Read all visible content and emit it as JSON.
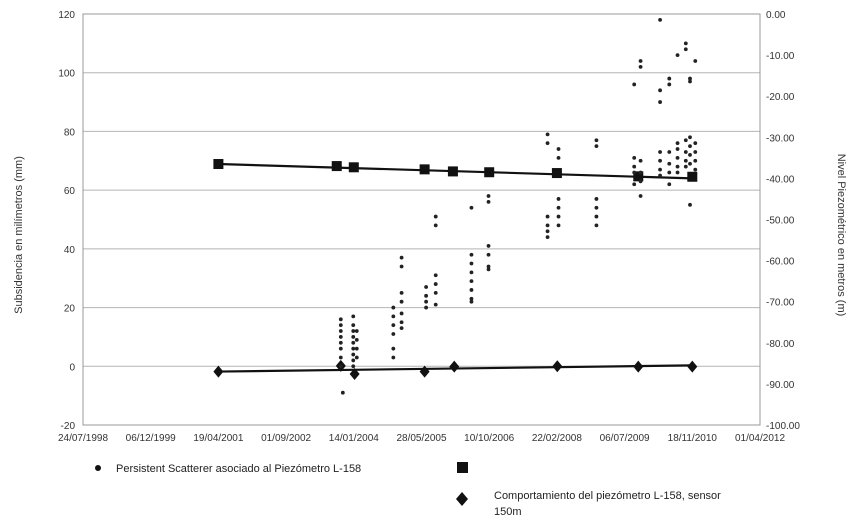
{
  "chart_data": {
    "type": "scatter",
    "x_axis": {
      "type": "date",
      "range": [
        "1998-07-24",
        "2012-04-01"
      ],
      "tick_labels": [
        "24/07/1998",
        "06/12/1999",
        "19/04/2001",
        "01/09/2002",
        "14/01/2004",
        "28/05/2005",
        "10/10/2006",
        "22/02/2008",
        "06/07/2009",
        "18/11/2010",
        "01/04/2012"
      ]
    },
    "y_left": {
      "label": "Subsidencia en milímetros   (mm)",
      "range": [
        -20,
        120
      ],
      "tick_labels": [
        "-20",
        "0",
        "20",
        "40",
        "60",
        "80",
        "100",
        "120"
      ]
    },
    "y_right": {
      "label": "Nivel Piezométrico en metros   (m)",
      "range": [
        -100,
        0
      ],
      "tick_labels": [
        "-100.00",
        "-90.00",
        "-80.00",
        "-70.00",
        "-60.00",
        "-50.00",
        "-40.00",
        "-30.00",
        "-20.00",
        "-10.00",
        "0.00"
      ]
    },
    "grid": "horizontal",
    "legend": {
      "position": "bottom",
      "items": [
        {
          "label": "Persistent Scatterer asociado al Piezómetro L-158",
          "marker": "circle"
        },
        {
          "label": "",
          "marker": "square"
        },
        {
          "label": "Comportamiento del  piezómetro L-158, sensor 150m",
          "marker": "diamond"
        }
      ]
    },
    "series": [
      {
        "marker": "square",
        "axis": "right",
        "trendline": {
          "from": [
            "2001-04-19",
            -36.5
          ],
          "to": [
            "2010-11-18",
            -40.0
          ]
        },
        "points": [
          [
            "2001-04-19",
            -36.5
          ],
          [
            "2003-09-10",
            -37.0
          ],
          [
            "2004-01-14",
            -37.3
          ],
          [
            "2005-06-20",
            -37.8
          ],
          [
            "2006-01-15",
            -38.3
          ],
          [
            "2006-10-10",
            -38.5
          ],
          [
            "2008-02-22",
            -38.7
          ],
          [
            "2009-10-15",
            -39.5
          ],
          [
            "2010-11-18",
            -39.6
          ]
        ]
      },
      {
        "marker": "diamond",
        "axis": "right",
        "trendline": {
          "from": [
            "2001-04-19",
            -87.0
          ],
          "to": [
            "2010-11-18",
            -85.5
          ]
        },
        "points": [
          [
            "2001-04-19",
            -87.0
          ],
          [
            "2003-10-10",
            -85.6
          ],
          [
            "2004-01-20",
            -87.6
          ],
          [
            "2005-06-20",
            -87.0
          ],
          [
            "2006-01-25",
            -85.8
          ],
          [
            "2008-02-25",
            -85.7
          ],
          [
            "2009-10-15",
            -85.8
          ],
          [
            "2010-11-18",
            -85.8
          ]
        ]
      },
      {
        "marker": "circle",
        "axis": "left",
        "points": [
          [
            "2003-10-10",
            16
          ],
          [
            "2003-10-10",
            14
          ],
          [
            "2003-10-10",
            12
          ],
          [
            "2003-10-10",
            10
          ],
          [
            "2003-10-10",
            8
          ],
          [
            "2003-10-10",
            6
          ],
          [
            "2003-10-10",
            3
          ],
          [
            "2003-10-10",
            0
          ],
          [
            "2003-10-25",
            -9
          ],
          [
            "2004-01-10",
            17
          ],
          [
            "2004-01-10",
            14
          ],
          [
            "2004-01-10",
            12
          ],
          [
            "2004-01-10",
            10
          ],
          [
            "2004-01-10",
            8
          ],
          [
            "2004-01-10",
            6
          ],
          [
            "2004-01-10",
            4
          ],
          [
            "2004-01-10",
            2
          ],
          [
            "2004-01-10",
            0
          ],
          [
            "2004-02-05",
            12
          ],
          [
            "2004-02-05",
            9
          ],
          [
            "2004-02-05",
            6
          ],
          [
            "2004-02-05",
            3
          ],
          [
            "2004-11-01",
            20
          ],
          [
            "2004-11-01",
            17
          ],
          [
            "2004-11-01",
            14
          ],
          [
            "2004-11-01",
            11
          ],
          [
            "2004-11-01",
            6
          ],
          [
            "2004-11-01",
            3
          ],
          [
            "2005-01-01",
            37
          ],
          [
            "2005-01-01",
            34
          ],
          [
            "2005-01-01",
            25
          ],
          [
            "2005-01-01",
            22
          ],
          [
            "2005-01-01",
            18
          ],
          [
            "2005-01-01",
            15
          ],
          [
            "2005-01-01",
            13
          ],
          [
            "2005-07-01",
            27
          ],
          [
            "2005-07-01",
            24
          ],
          [
            "2005-07-01",
            22
          ],
          [
            "2005-07-01",
            20
          ],
          [
            "2005-09-10",
            51
          ],
          [
            "2005-09-10",
            48
          ],
          [
            "2005-09-10",
            31
          ],
          [
            "2005-09-10",
            28
          ],
          [
            "2005-09-10",
            25
          ],
          [
            "2005-09-10",
            21
          ],
          [
            "2006-06-01",
            54
          ],
          [
            "2006-06-01",
            38
          ],
          [
            "2006-06-01",
            35
          ],
          [
            "2006-06-01",
            32
          ],
          [
            "2006-06-01",
            29
          ],
          [
            "2006-06-01",
            26
          ],
          [
            "2006-06-01",
            23
          ],
          [
            "2006-06-01",
            22
          ],
          [
            "2006-10-05",
            58
          ],
          [
            "2006-10-05",
            56
          ],
          [
            "2006-10-05",
            41
          ],
          [
            "2006-10-05",
            38
          ],
          [
            "2006-10-05",
            34
          ],
          [
            "2006-10-05",
            33
          ],
          [
            "2007-12-15",
            79
          ],
          [
            "2007-12-15",
            76
          ],
          [
            "2007-12-15",
            51
          ],
          [
            "2007-12-15",
            48
          ],
          [
            "2007-12-15",
            46
          ],
          [
            "2007-12-15",
            44
          ],
          [
            "2008-03-05",
            74
          ],
          [
            "2008-03-05",
            71
          ],
          [
            "2008-03-05",
            57
          ],
          [
            "2008-03-05",
            54
          ],
          [
            "2008-03-05",
            51
          ],
          [
            "2008-03-05",
            48
          ],
          [
            "2008-12-10",
            77
          ],
          [
            "2008-12-10",
            75
          ],
          [
            "2008-12-10",
            57
          ],
          [
            "2008-12-10",
            54
          ],
          [
            "2008-12-10",
            51
          ],
          [
            "2008-12-10",
            48
          ],
          [
            "2009-09-15",
            96
          ],
          [
            "2009-09-15",
            71
          ],
          [
            "2009-09-15",
            68
          ],
          [
            "2009-09-15",
            66
          ],
          [
            "2009-09-15",
            62
          ],
          [
            "2009-11-01",
            104
          ],
          [
            "2009-11-01",
            102
          ],
          [
            "2009-11-01",
            70
          ],
          [
            "2009-11-01",
            66
          ],
          [
            "2009-11-01",
            63
          ],
          [
            "2009-11-01",
            58
          ],
          [
            "2010-03-25",
            118
          ],
          [
            "2010-03-25",
            90
          ],
          [
            "2010-03-25",
            94
          ],
          [
            "2010-03-25",
            73
          ],
          [
            "2010-03-25",
            70
          ],
          [
            "2010-03-25",
            67
          ],
          [
            "2010-03-25",
            65
          ],
          [
            "2010-06-01",
            98
          ],
          [
            "2010-06-01",
            96
          ],
          [
            "2010-06-01",
            73
          ],
          [
            "2010-06-01",
            69
          ],
          [
            "2010-06-01",
            66
          ],
          [
            "2010-06-01",
            62
          ],
          [
            "2010-08-01",
            106
          ],
          [
            "2010-08-01",
            76
          ],
          [
            "2010-08-01",
            74
          ],
          [
            "2010-08-01",
            71
          ],
          [
            "2010-08-01",
            68
          ],
          [
            "2010-08-01",
            66
          ],
          [
            "2010-10-01",
            110
          ],
          [
            "2010-10-01",
            108
          ],
          [
            "2010-10-01",
            77
          ],
          [
            "2010-10-01",
            73
          ],
          [
            "2010-10-01",
            70
          ],
          [
            "2010-10-01",
            68
          ],
          [
            "2010-11-01",
            98
          ],
          [
            "2010-11-01",
            97
          ],
          [
            "2010-11-01",
            78
          ],
          [
            "2010-11-01",
            75
          ],
          [
            "2010-11-01",
            72
          ],
          [
            "2010-11-01",
            69
          ],
          [
            "2010-11-01",
            55
          ],
          [
            "2010-12-10",
            104
          ],
          [
            "2010-12-10",
            76
          ],
          [
            "2010-12-10",
            73
          ],
          [
            "2010-12-10",
            70
          ],
          [
            "2010-12-10",
            67
          ]
        ]
      }
    ]
  }
}
